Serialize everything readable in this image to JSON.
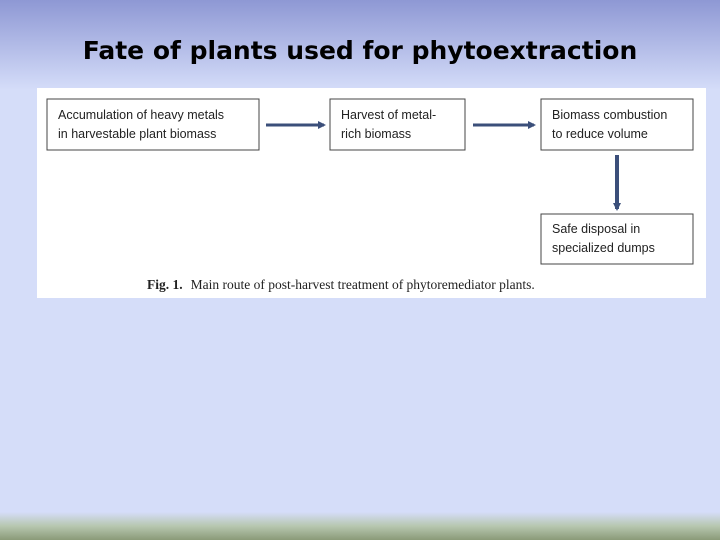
{
  "header": {
    "title": "Fate of plants used for phytoextraction"
  },
  "nodes": [
    {
      "lines": [
        "Accumulation of heavy metals",
        "in harvestable plant biomass"
      ]
    },
    {
      "lines": [
        "Harvest of metal-",
        "rich biomass"
      ]
    },
    {
      "lines": [
        "Biomass combustion",
        "to reduce volume"
      ]
    },
    {
      "lines": [
        "Safe disposal in",
        "specialized dumps"
      ]
    }
  ],
  "caption": {
    "label": "Fig. 1.",
    "text": "Main route of post-harvest treatment of phytoremediator plants."
  }
}
